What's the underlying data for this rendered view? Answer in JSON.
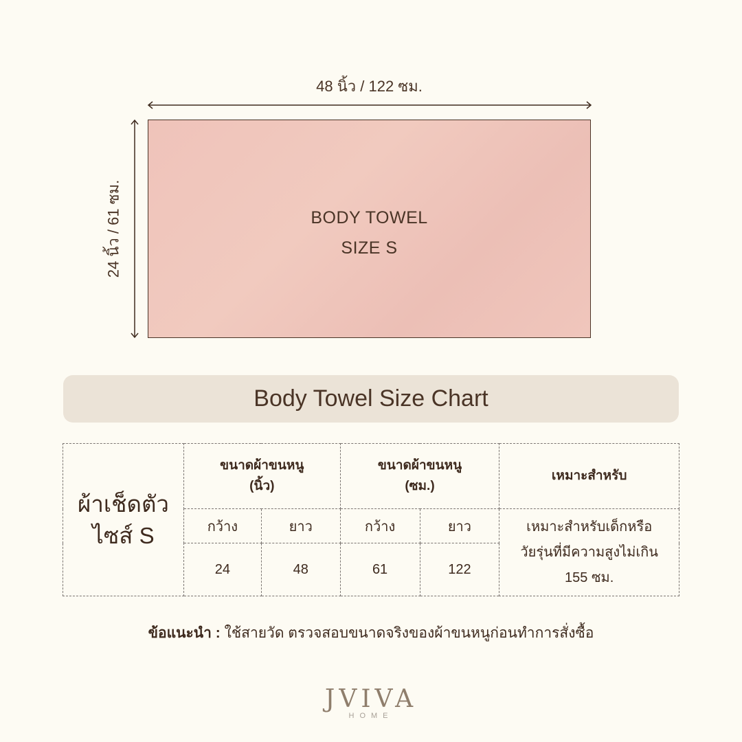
{
  "dimensions": {
    "width_label": "48 นิ้ว / 122 ซม.",
    "height_label": "24 นิ้ว / 61 ซม."
  },
  "towel": {
    "line1": "BODY TOWEL",
    "line2": "SIZE S",
    "color": "#efc5bc"
  },
  "title": "Body Towel Size Chart",
  "table": {
    "row_label_line1": "ผ้าเช็ดตัว",
    "row_label_line2": "ไซส์ S",
    "col_inch_line1": "ขนาดผ้าขนหนู",
    "col_inch_line2": "(นิ้ว)",
    "col_cm_line1": "ขนาดผ้าขนหนู",
    "col_cm_line2": "(ซม.)",
    "col_suitable": "เหมาะสำหรับ",
    "sub": {
      "width": "กว้าง",
      "length": "ยาว"
    },
    "values": {
      "inch_width": "24",
      "inch_length": "48",
      "cm_width": "61",
      "cm_length": "122"
    },
    "suitable_line1": "เหมาะสำหรับเด็กหรือ",
    "suitable_line2": "วัยรุ่นที่มีความสูงไม่เกิน",
    "suitable_line3": "155 ซม."
  },
  "note": {
    "label": "ข้อแนะนำ :",
    "text": " ใช้สายวัด ตรวจสอบขนาดจริงของผ้าขนหนูก่อนทำการสั่งซื้อ"
  },
  "logo": {
    "brand": "JVIVA",
    "sub": "HOME"
  }
}
